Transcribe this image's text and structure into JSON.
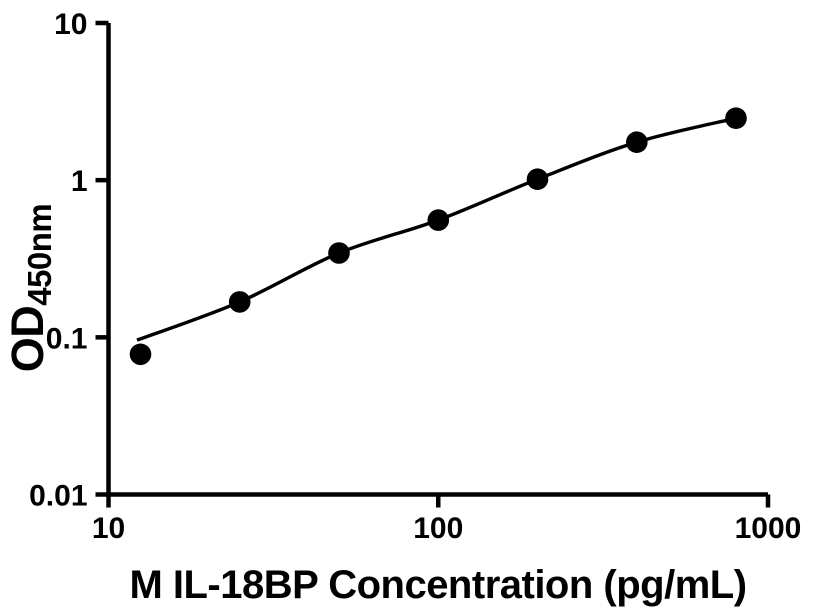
{
  "figure": {
    "background_color": "#ffffff",
    "ink_color": "#000000"
  },
  "chart_data": {
    "type": "scatter",
    "title": "",
    "xlabel": "M IL-18BP Concentration (pg/mL)",
    "ylabel": "OD450nm",
    "ylabel_base": "OD",
    "ylabel_sub": "450nm",
    "x_scale": "log",
    "y_scale": "log",
    "xlim": [
      10,
      1000
    ],
    "ylim": [
      0.01,
      10
    ],
    "grid": false,
    "legend": null,
    "x_ticks": [
      {
        "value": 10,
        "label": "10"
      },
      {
        "value": 100,
        "label": "100"
      },
      {
        "value": 1000,
        "label": "1000"
      }
    ],
    "y_ticks": [
      {
        "value": 10,
        "label": "10"
      },
      {
        "value": 1,
        "label": "1"
      },
      {
        "value": 0.1,
        "label": "0.1"
      },
      {
        "value": 0.01,
        "label": "0.01"
      }
    ],
    "series": [
      {
        "name": "standard-curve",
        "marker": "filled-circle",
        "marker_color": "#000000",
        "line_color": "#000000",
        "points": [
          {
            "x": 12.5,
            "y": 0.078
          },
          {
            "x": 25,
            "y": 0.168
          },
          {
            "x": 50,
            "y": 0.344
          },
          {
            "x": 100,
            "y": 0.557
          },
          {
            "x": 200,
            "y": 1.015
          },
          {
            "x": 400,
            "y": 1.745
          },
          {
            "x": 800,
            "y": 2.478
          }
        ],
        "fit_curve": [
          {
            "x": 12.2,
            "y": 0.096
          },
          {
            "x": 25,
            "y": 0.168
          },
          {
            "x": 50,
            "y": 0.344
          },
          {
            "x": 100,
            "y": 0.557
          },
          {
            "x": 200,
            "y": 1.015
          },
          {
            "x": 400,
            "y": 1.745
          },
          {
            "x": 800,
            "y": 2.478
          }
        ]
      }
    ]
  }
}
